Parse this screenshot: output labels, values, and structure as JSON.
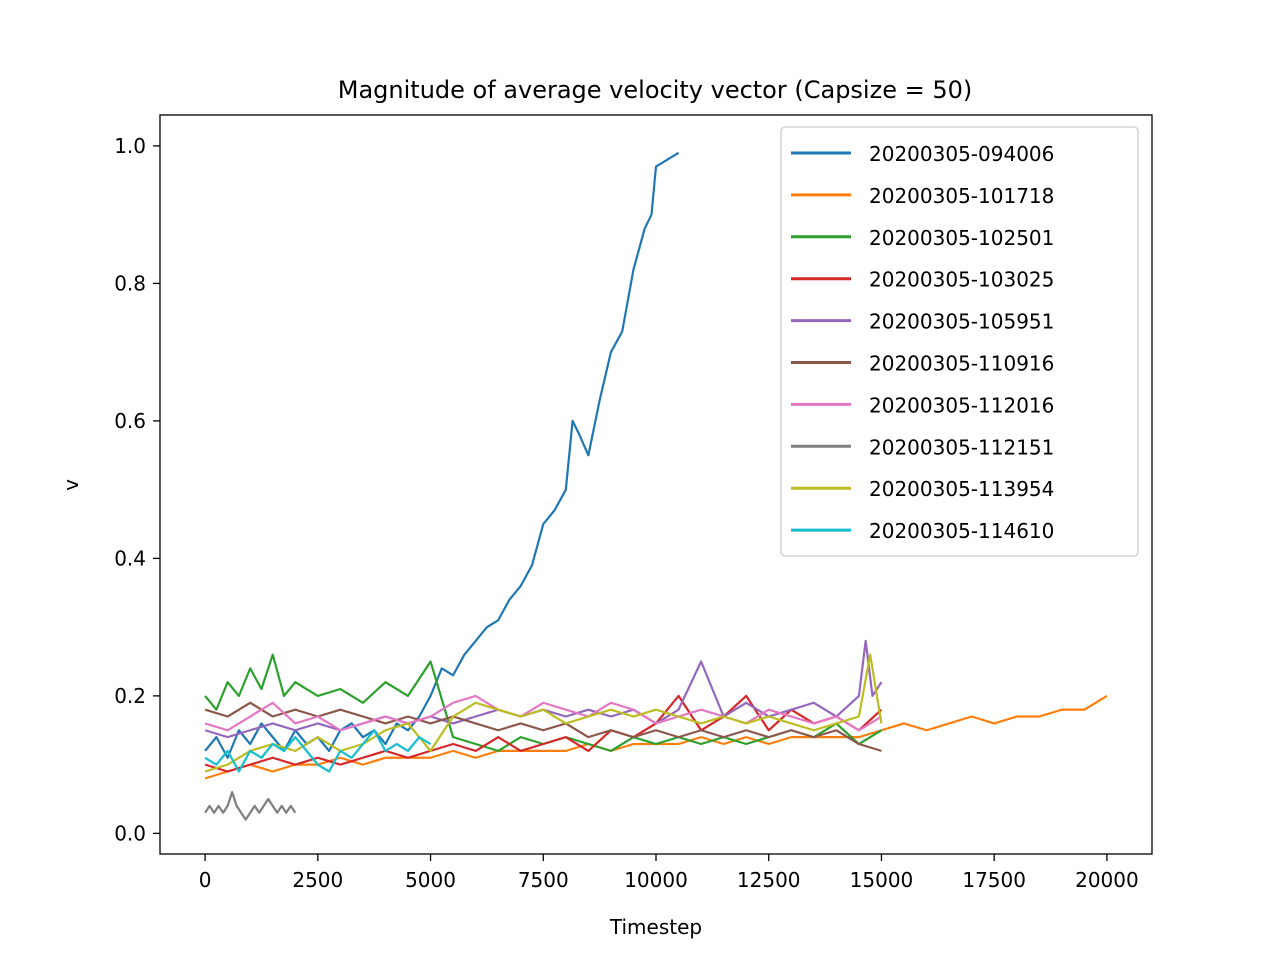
{
  "chart_data": {
    "type": "line",
    "title": "Magnitude of average velocity vector (Capsize = 50)",
    "xlabel": "Timestep",
    "ylabel": "v",
    "xlim": [
      -1000,
      21000
    ],
    "ylim": [
      -0.03,
      1.045
    ],
    "x_ticks": [
      0,
      2500,
      5000,
      7500,
      10000,
      12500,
      15000,
      17500,
      20000
    ],
    "x_tick_labels": [
      "0",
      "2500",
      "5000",
      "7500",
      "10000",
      "12500",
      "15000",
      "17500",
      "20000"
    ],
    "y_ticks": [
      0.0,
      0.2,
      0.4,
      0.6,
      0.8,
      1.0
    ],
    "y_tick_labels": [
      "0.0",
      "0.2",
      "0.4",
      "0.6",
      "0.8",
      "1.0"
    ],
    "grid": false,
    "legend_position": "top-right",
    "series": [
      {
        "name": "20200305-094006",
        "color": "#1f77b4",
        "x": [
          0,
          250,
          500,
          750,
          1000,
          1250,
          1500,
          1750,
          2000,
          2250,
          2500,
          2750,
          3000,
          3250,
          3500,
          3750,
          4000,
          4250,
          4500,
          4750,
          5000,
          5250,
          5500,
          5750,
          6000,
          6250,
          6500,
          6750,
          7000,
          7250,
          7500,
          7750,
          8000,
          8150,
          8300,
          8500,
          8750,
          9000,
          9250,
          9500,
          9750,
          9900,
          10000,
          10250,
          10500
        ],
        "y": [
          0.12,
          0.14,
          0.11,
          0.15,
          0.13,
          0.16,
          0.14,
          0.12,
          0.15,
          0.13,
          0.14,
          0.12,
          0.15,
          0.16,
          0.14,
          0.15,
          0.13,
          0.16,
          0.15,
          0.17,
          0.2,
          0.24,
          0.23,
          0.26,
          0.28,
          0.3,
          0.31,
          0.34,
          0.36,
          0.39,
          0.45,
          0.47,
          0.5,
          0.6,
          0.58,
          0.55,
          0.63,
          0.7,
          0.73,
          0.82,
          0.88,
          0.9,
          0.97,
          0.98,
          0.99
        ]
      },
      {
        "name": "20200305-101718",
        "color": "#ff7f0e",
        "x": [
          0,
          500,
          1000,
          1500,
          2000,
          2500,
          3000,
          3500,
          4000,
          4500,
          5000,
          5500,
          6000,
          6500,
          7000,
          7500,
          8000,
          8500,
          9000,
          9500,
          10000,
          10500,
          11000,
          11500,
          12000,
          12500,
          13000,
          13500,
          14000,
          14500,
          15000,
          15500,
          16000,
          16500,
          17000,
          17500,
          18000,
          18500,
          19000,
          19500,
          20000
        ],
        "y": [
          0.08,
          0.09,
          0.1,
          0.09,
          0.1,
          0.1,
          0.11,
          0.1,
          0.11,
          0.11,
          0.11,
          0.12,
          0.11,
          0.12,
          0.12,
          0.12,
          0.12,
          0.13,
          0.12,
          0.13,
          0.13,
          0.13,
          0.14,
          0.13,
          0.14,
          0.13,
          0.14,
          0.14,
          0.14,
          0.14,
          0.15,
          0.16,
          0.15,
          0.16,
          0.17,
          0.16,
          0.17,
          0.17,
          0.18,
          0.18,
          0.2
        ]
      },
      {
        "name": "20200305-102501",
        "color": "#2ca02c",
        "x": [
          0,
          250,
          500,
          750,
          1000,
          1250,
          1500,
          1750,
          2000,
          2500,
          3000,
          3500,
          4000,
          4500,
          5000,
          5500,
          6000,
          6500,
          7000,
          7500,
          8000,
          8500,
          9000,
          9500,
          10000,
          10500,
          11000,
          11500,
          12000,
          12500,
          13000,
          13500,
          14000,
          14500,
          15000
        ],
        "y": [
          0.2,
          0.18,
          0.22,
          0.2,
          0.24,
          0.21,
          0.26,
          0.2,
          0.22,
          0.2,
          0.21,
          0.19,
          0.22,
          0.2,
          0.25,
          0.14,
          0.13,
          0.12,
          0.14,
          0.13,
          0.14,
          0.13,
          0.12,
          0.14,
          0.13,
          0.14,
          0.13,
          0.14,
          0.13,
          0.14,
          0.15,
          0.14,
          0.16,
          0.13,
          0.15
        ]
      },
      {
        "name": "20200305-103025",
        "color": "#d62728",
        "x": [
          0,
          500,
          1000,
          1500,
          2000,
          2500,
          3000,
          3500,
          4000,
          4500,
          5000,
          5500,
          6000,
          6500,
          7000,
          7500,
          8000,
          8500,
          9000,
          9500,
          10000,
          10500,
          11000,
          11500,
          12000,
          12500,
          13000,
          13500,
          14000,
          14500,
          15000
        ],
        "y": [
          0.1,
          0.09,
          0.1,
          0.11,
          0.1,
          0.11,
          0.1,
          0.11,
          0.12,
          0.11,
          0.12,
          0.13,
          0.12,
          0.14,
          0.12,
          0.13,
          0.14,
          0.12,
          0.15,
          0.14,
          0.16,
          0.2,
          0.15,
          0.17,
          0.2,
          0.15,
          0.18,
          0.16,
          0.17,
          0.15,
          0.18
        ]
      },
      {
        "name": "20200305-105951",
        "color": "#9467bd",
        "x": [
          0,
          500,
          1000,
          1500,
          2000,
          2500,
          3000,
          3500,
          4000,
          4500,
          5000,
          5500,
          6000,
          6500,
          7000,
          7500,
          8000,
          8500,
          9000,
          9500,
          10000,
          10500,
          11000,
          11500,
          12000,
          12500,
          13000,
          13500,
          14000,
          14500,
          14650,
          14800,
          15000
        ],
        "y": [
          0.15,
          0.14,
          0.15,
          0.16,
          0.15,
          0.16,
          0.15,
          0.16,
          0.17,
          0.16,
          0.17,
          0.16,
          0.17,
          0.18,
          0.17,
          0.18,
          0.17,
          0.18,
          0.17,
          0.18,
          0.16,
          0.18,
          0.25,
          0.17,
          0.19,
          0.17,
          0.18,
          0.19,
          0.17,
          0.2,
          0.28,
          0.2,
          0.22
        ]
      },
      {
        "name": "20200305-110916",
        "color": "#8c564b",
        "x": [
          0,
          500,
          1000,
          1500,
          2000,
          2500,
          3000,
          3500,
          4000,
          4500,
          5000,
          5500,
          6000,
          6500,
          7000,
          7500,
          8000,
          8500,
          9000,
          9500,
          10000,
          10500,
          11000,
          11500,
          12000,
          12500,
          13000,
          13500,
          14000,
          14500,
          15000
        ],
        "y": [
          0.18,
          0.17,
          0.19,
          0.17,
          0.18,
          0.17,
          0.18,
          0.17,
          0.16,
          0.17,
          0.16,
          0.17,
          0.16,
          0.15,
          0.16,
          0.15,
          0.16,
          0.14,
          0.15,
          0.14,
          0.15,
          0.14,
          0.15,
          0.14,
          0.15,
          0.14,
          0.15,
          0.14,
          0.15,
          0.13,
          0.12
        ]
      },
      {
        "name": "20200305-112016",
        "color": "#e377c2",
        "x": [
          0,
          500,
          1000,
          1500,
          2000,
          2500,
          3000,
          3500,
          4000,
          4500,
          5000,
          5500,
          6000,
          6500,
          7000,
          7500,
          8000,
          8500,
          9000,
          9500,
          10000,
          10500,
          11000,
          11500,
          12000,
          12500,
          13000,
          13500,
          14000,
          14500,
          15000
        ],
        "y": [
          0.16,
          0.15,
          0.17,
          0.19,
          0.16,
          0.17,
          0.15,
          0.16,
          0.17,
          0.16,
          0.17,
          0.19,
          0.2,
          0.18,
          0.17,
          0.19,
          0.18,
          0.17,
          0.19,
          0.18,
          0.16,
          0.17,
          0.18,
          0.17,
          0.16,
          0.18,
          0.17,
          0.16,
          0.17,
          0.15,
          0.17
        ]
      },
      {
        "name": "20200305-112151",
        "color": "#7f7f7f",
        "x": [
          0,
          100,
          200,
          300,
          400,
          500,
          600,
          700,
          800,
          900,
          1000,
          1100,
          1200,
          1300,
          1400,
          1500,
          1600,
          1700,
          1800,
          1900,
          2000
        ],
        "y": [
          0.03,
          0.04,
          0.03,
          0.04,
          0.03,
          0.04,
          0.06,
          0.04,
          0.03,
          0.02,
          0.03,
          0.04,
          0.03,
          0.04,
          0.05,
          0.04,
          0.03,
          0.04,
          0.03,
          0.04,
          0.03
        ]
      },
      {
        "name": "20200305-113954",
        "color": "#bcbd22",
        "x": [
          0,
          500,
          1000,
          1500,
          2000,
          2500,
          3000,
          3500,
          4000,
          4500,
          5000,
          5500,
          6000,
          6500,
          7000,
          7500,
          8000,
          8500,
          9000,
          9500,
          10000,
          10500,
          11000,
          11500,
          12000,
          12500,
          13000,
          13500,
          14000,
          14500,
          14750,
          15000
        ],
        "y": [
          0.09,
          0.1,
          0.12,
          0.13,
          0.12,
          0.14,
          0.12,
          0.13,
          0.15,
          0.16,
          0.12,
          0.17,
          0.19,
          0.18,
          0.17,
          0.18,
          0.16,
          0.17,
          0.18,
          0.17,
          0.18,
          0.17,
          0.16,
          0.17,
          0.16,
          0.17,
          0.16,
          0.15,
          0.16,
          0.17,
          0.26,
          0.16
        ]
      },
      {
        "name": "20200305-114610",
        "color": "#17becf",
        "x": [
          0,
          250,
          500,
          750,
          1000,
          1250,
          1500,
          1750,
          2000,
          2250,
          2500,
          2750,
          3000,
          3250,
          3500,
          3750,
          4000,
          4250,
          4500,
          4750,
          5000
        ],
        "y": [
          0.11,
          0.1,
          0.12,
          0.09,
          0.12,
          0.11,
          0.13,
          0.12,
          0.14,
          0.12,
          0.1,
          0.09,
          0.12,
          0.11,
          0.13,
          0.15,
          0.12,
          0.13,
          0.12,
          0.14,
          0.13
        ]
      }
    ]
  }
}
